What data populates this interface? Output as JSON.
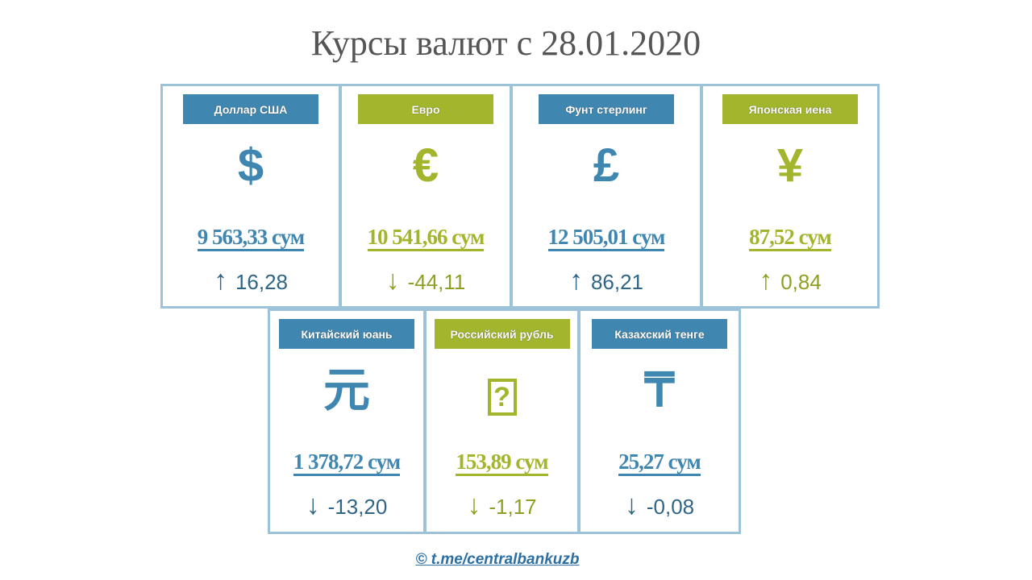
{
  "title": "Курсы валют с 28.01.2020",
  "colors": {
    "blue": "#3f86b0",
    "green": "#a3b52c",
    "border": "#9cc3d8"
  },
  "currencies": [
    {
      "name": "Доллар США",
      "symbol": "$",
      "value": "9 563,33 сум",
      "direction": "up",
      "change": "16,28",
      "color": "blue"
    },
    {
      "name": "Евро",
      "symbol": "€",
      "value": "10 541,66 сум",
      "direction": "down",
      "change": "-44,11",
      "color": "green"
    },
    {
      "name": "Фунт стерлинг",
      "symbol": "£",
      "value": "12 505,01 сум",
      "direction": "up",
      "change": "86,21",
      "color": "blue"
    },
    {
      "name": "Японская иена",
      "symbol": "¥",
      "value": "87,52 сум",
      "direction": "up",
      "change": "0,84",
      "color": "green"
    },
    {
      "name": "Китайский юань",
      "symbol": "元",
      "value": "1 378,72 сум",
      "direction": "down",
      "change": "-13,20",
      "color": "blue"
    },
    {
      "name": "Российский рубль",
      "symbol": "?",
      "value": "153,89 сум",
      "direction": "down",
      "change": "-1,17",
      "color": "green"
    },
    {
      "name": "Казахский тенге",
      "symbol": "₸",
      "value": "25,27 сум",
      "direction": "down",
      "change": "-0,08",
      "color": "blue"
    }
  ],
  "footer": "© t.me/centralbankuzb"
}
